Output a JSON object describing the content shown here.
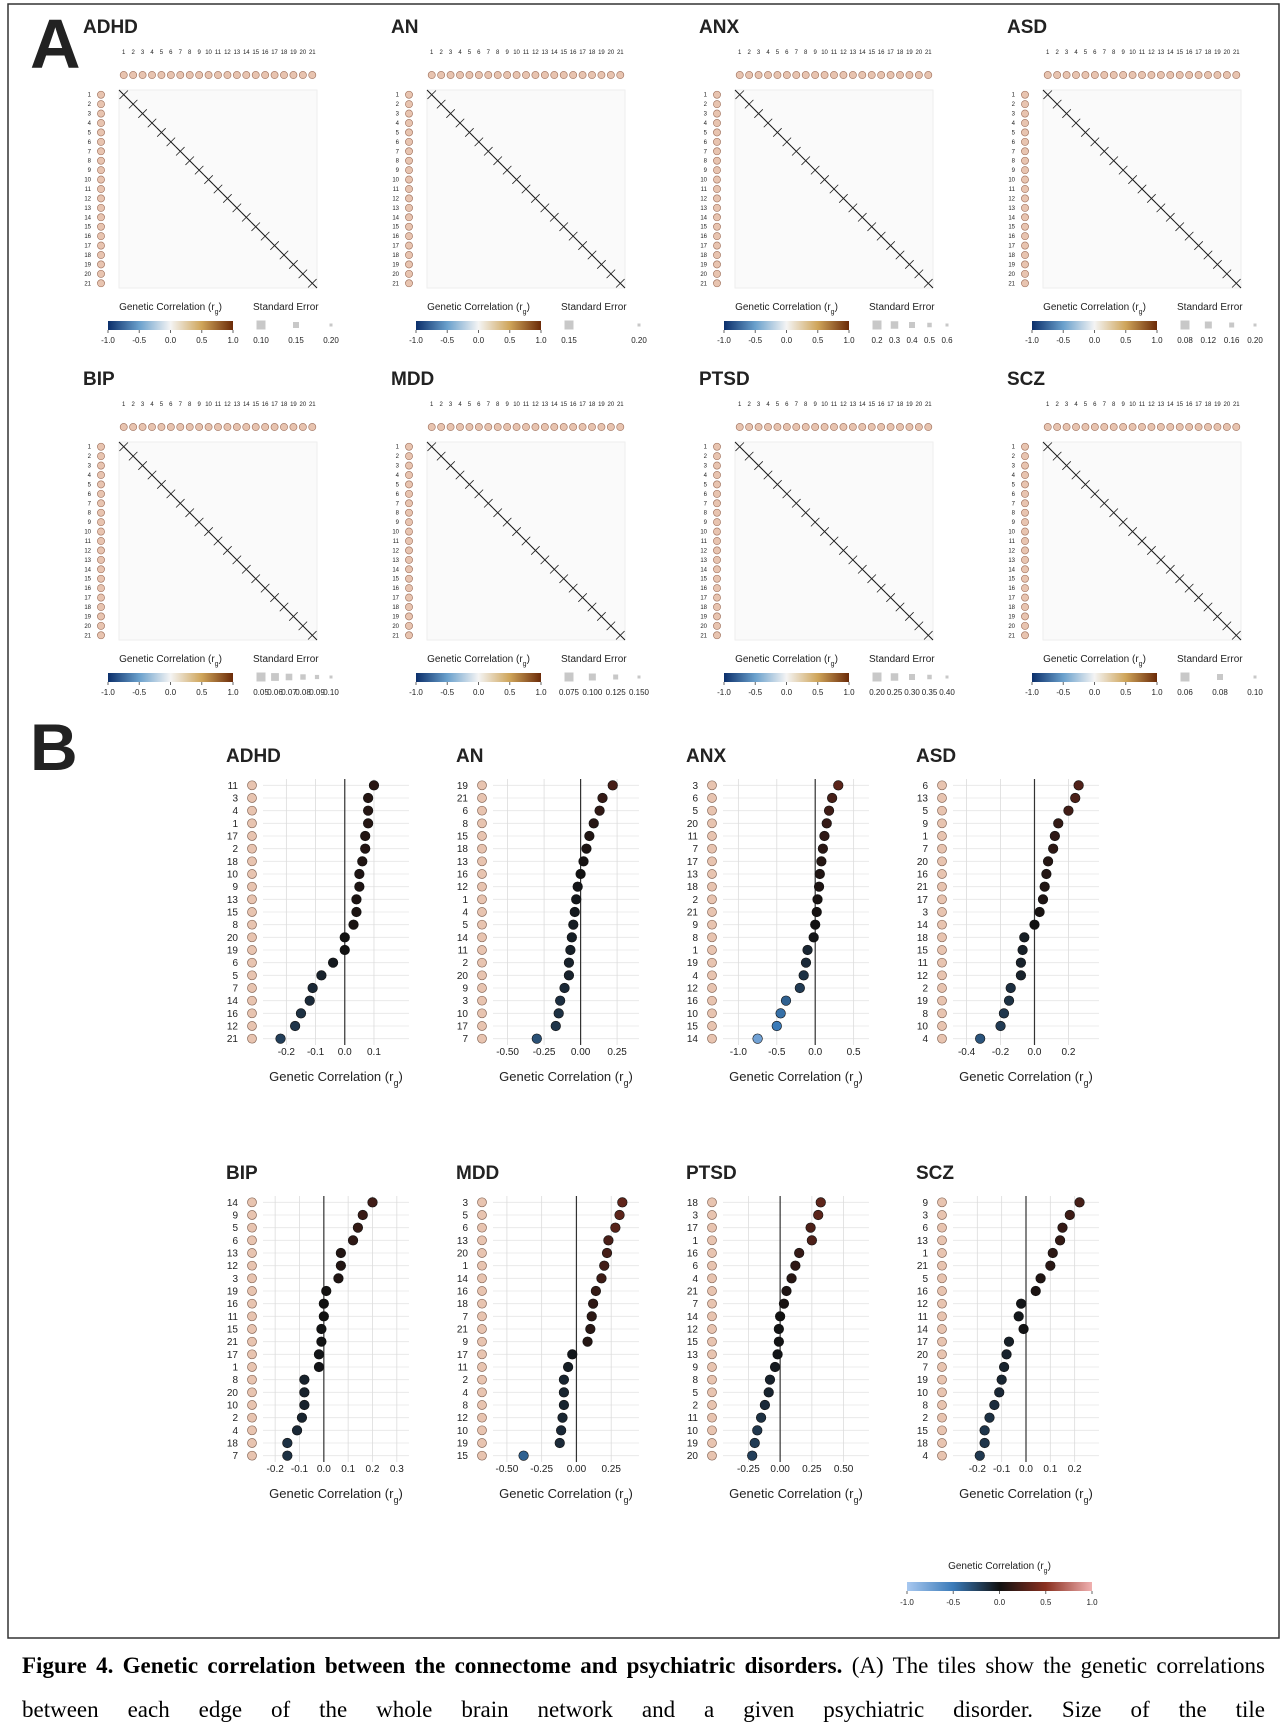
{
  "figure": {
    "panel_labels": [
      "A",
      "B"
    ],
    "regions": [
      "1",
      "2",
      "3",
      "4",
      "5",
      "6",
      "7",
      "8",
      "9",
      "10",
      "11",
      "12",
      "13",
      "14",
      "15",
      "16",
      "17",
      "18",
      "19",
      "20",
      "21"
    ],
    "r_label": [
      "Genetic Correlation (r",
      "g",
      ")"
    ],
    "se_label": "Standard Error",
    "colorbar_ticks": [
      {
        "value": -1,
        "label": "-1.0"
      },
      -0.5,
      {
        "value": 0,
        "label": "0.0"
      },
      0.5,
      {
        "value": 1,
        "label": "1.0"
      }
    ]
  },
  "chart_data": [
    {
      "type": "heatmap",
      "title": "ADHD",
      "se_ticks": [
        {
          "value": 0.1,
          "label": "0.10"
        },
        0.15,
        {
          "value": 0.2,
          "label": "0.20"
        }
      ]
    },
    {
      "type": "heatmap",
      "title": "AN",
      "se_ticks": [
        0.15,
        {
          "value": 0.2,
          "label": "0.20"
        }
      ]
    },
    {
      "type": "heatmap",
      "title": "ANX",
      "se_ticks": [
        0.2,
        0.3,
        0.4,
        0.5,
        0.6
      ]
    },
    {
      "type": "heatmap",
      "title": "ASD",
      "se_ticks": [
        0.08,
        0.12,
        0.16,
        {
          "value": 0.2,
          "label": "0.20"
        }
      ]
    },
    {
      "type": "heatmap",
      "title": "BIP",
      "se_ticks": [
        0.05,
        0.06,
        0.07,
        0.08,
        0.09,
        {
          "value": 0.1,
          "label": "0.10"
        }
      ]
    },
    {
      "type": "heatmap",
      "title": "MDD",
      "se_ticks": [
        0.075,
        {
          "value": 0.1,
          "label": "0.100"
        },
        0.125,
        {
          "value": 0.15,
          "label": "0.150"
        }
      ]
    },
    {
      "type": "heatmap",
      "title": "PTSD",
      "se_ticks": [
        {
          "value": 0.2,
          "label": "0.20"
        },
        0.25,
        {
          "value": 0.3,
          "label": "0.30"
        },
        0.35,
        {
          "value": 0.4,
          "label": "0.40"
        }
      ]
    },
    {
      "type": "heatmap",
      "title": "SCZ",
      "se_ticks": [
        0.06,
        0.08,
        {
          "value": 0.1,
          "label": "0.10"
        }
      ]
    },
    {
      "type": "dot",
      "title": "ADHD",
      "categories": [
        "11",
        "3",
        "4",
        "1",
        "17",
        "2",
        "18",
        "10",
        "9",
        "13",
        "15",
        "8",
        "20",
        "19",
        "6",
        "5",
        "7",
        "14",
        "16",
        "12",
        "21"
      ],
      "values": [
        0.1,
        0.08,
        0.08,
        0.08,
        0.07,
        0.07,
        0.06,
        0.05,
        0.05,
        0.04,
        0.04,
        0.03,
        0.0,
        0.0,
        -0.04,
        -0.08,
        -0.11,
        -0.12,
        -0.15,
        -0.17,
        -0.22
      ],
      "xlim": [
        -0.28,
        0.22
      ],
      "xticks": [
        -0.2,
        -0.1,
        {
          "value": 0,
          "label": "0.0"
        },
        0.1
      ]
    },
    {
      "type": "dot",
      "title": "AN",
      "categories": [
        "19",
        "21",
        "6",
        "8",
        "15",
        "18",
        "13",
        "16",
        "12",
        "1",
        "4",
        "5",
        "14",
        "11",
        "2",
        "20",
        "9",
        "3",
        "10",
        "17",
        "7"
      ],
      "values": [
        0.22,
        0.15,
        0.13,
        0.09,
        0.06,
        0.04,
        0.02,
        0.0,
        -0.02,
        -0.03,
        -0.04,
        -0.05,
        -0.06,
        -0.07,
        -0.08,
        -0.08,
        -0.11,
        -0.14,
        -0.15,
        -0.17,
        -0.3
      ],
      "xlim": [
        -0.6,
        0.4
      ],
      "xticks": [
        {
          "value": -0.5,
          "label": "-0.50"
        },
        -0.25,
        {
          "value": 0,
          "label": "0.00"
        },
        0.25
      ]
    },
    {
      "type": "dot",
      "title": "ANX",
      "categories": [
        "3",
        "6",
        "5",
        "20",
        "11",
        "7",
        "17",
        "13",
        "18",
        "2",
        "21",
        "9",
        "8",
        "1",
        "19",
        "4",
        "12",
        "16",
        "10",
        "15",
        "14"
      ],
      "values": [
        0.3,
        0.22,
        0.18,
        0.15,
        0.12,
        0.1,
        0.08,
        0.06,
        0.05,
        0.03,
        0.02,
        0.0,
        -0.02,
        -0.1,
        -0.12,
        -0.15,
        -0.2,
        -0.38,
        -0.45,
        -0.5,
        -0.75
      ],
      "xlim": [
        -1.2,
        0.7
      ],
      "xticks": [
        {
          "value": -1,
          "label": "-1.0"
        },
        -0.5,
        {
          "value": 0,
          "label": "0.0"
        },
        0.5
      ]
    },
    {
      "type": "dot",
      "title": "ASD",
      "categories": [
        "6",
        "13",
        "5",
        "9",
        "1",
        "7",
        "20",
        "16",
        "21",
        "17",
        "3",
        "14",
        "18",
        "15",
        "11",
        "12",
        "2",
        "19",
        "8",
        "10",
        "4"
      ],
      "values": [
        0.26,
        0.24,
        0.2,
        0.14,
        0.12,
        0.11,
        0.08,
        0.07,
        0.06,
        0.05,
        0.03,
        0.0,
        -0.06,
        -0.07,
        -0.08,
        -0.08,
        -0.14,
        -0.15,
        -0.18,
        -0.2,
        -0.32
      ],
      "xlim": [
        -0.48,
        0.38
      ],
      "xticks": [
        -0.4,
        -0.2,
        {
          "value": 0,
          "label": "0.0"
        },
        0.2
      ]
    },
    {
      "type": "dot",
      "title": "BIP",
      "categories": [
        "14",
        "9",
        "5",
        "6",
        "13",
        "12",
        "3",
        "19",
        "16",
        "11",
        "15",
        "21",
        "17",
        "1",
        "8",
        "20",
        "10",
        "2",
        "4",
        "18",
        "7"
      ],
      "values": [
        0.2,
        0.16,
        0.14,
        0.12,
        0.07,
        0.07,
        0.06,
        0.01,
        0.0,
        0.0,
        -0.01,
        -0.01,
        -0.02,
        -0.02,
        -0.08,
        -0.08,
        -0.08,
        -0.09,
        -0.11,
        -0.15,
        -0.15
      ],
      "xlim": [
        -0.25,
        0.35
      ],
      "xticks": [
        -0.2,
        -0.1,
        {
          "value": 0,
          "label": "0.0"
        },
        0.1,
        0.2,
        0.3
      ]
    },
    {
      "type": "dot",
      "title": "MDD",
      "categories": [
        "3",
        "5",
        "6",
        "13",
        "20",
        "1",
        "14",
        "16",
        "18",
        "7",
        "21",
        "9",
        "17",
        "11",
        "2",
        "4",
        "8",
        "12",
        "10",
        "19",
        "15"
      ],
      "values": [
        0.33,
        0.31,
        0.28,
        0.23,
        0.22,
        0.2,
        0.18,
        0.14,
        0.12,
        0.11,
        0.1,
        0.08,
        -0.03,
        -0.06,
        -0.09,
        -0.09,
        -0.09,
        -0.1,
        -0.11,
        -0.12,
        -0.38
      ],
      "xlim": [
        -0.6,
        0.45
      ],
      "xticks": [
        {
          "value": -0.5,
          "label": "-0.50"
        },
        -0.25,
        {
          "value": 0,
          "label": "0.00"
        },
        0.25
      ]
    },
    {
      "type": "dot",
      "title": "PTSD",
      "categories": [
        "18",
        "3",
        "17",
        "1",
        "16",
        "6",
        "4",
        "21",
        "7",
        "14",
        "12",
        "15",
        "13",
        "9",
        "8",
        "5",
        "2",
        "11",
        "10",
        "19",
        "20"
      ],
      "values": [
        0.32,
        0.3,
        0.24,
        0.25,
        0.15,
        0.12,
        0.09,
        0.05,
        0.03,
        0.0,
        -0.01,
        -0.01,
        -0.02,
        -0.04,
        -0.08,
        -0.09,
        -0.12,
        -0.15,
        -0.18,
        -0.2,
        -0.22
      ],
      "xlim": [
        -0.45,
        0.7
      ],
      "xticks": [
        -0.25,
        {
          "value": 0,
          "label": "0.00"
        },
        0.25,
        {
          "value": 0.5,
          "label": "0.50"
        }
      ]
    },
    {
      "type": "dot",
      "title": "SCZ",
      "categories": [
        "9",
        "3",
        "6",
        "13",
        "1",
        "21",
        "5",
        "16",
        "12",
        "11",
        "14",
        "17",
        "20",
        "7",
        "19",
        "10",
        "8",
        "2",
        "15",
        "18",
        "4"
      ],
      "values": [
        0.22,
        0.18,
        0.15,
        0.14,
        0.11,
        0.1,
        0.06,
        0.04,
        -0.02,
        -0.03,
        -0.01,
        -0.07,
        -0.08,
        -0.09,
        -0.1,
        -0.11,
        -0.13,
        -0.15,
        -0.17,
        -0.17,
        -0.19
      ],
      "xlim": [
        -0.3,
        0.3
      ],
      "xticks": [
        -0.2,
        -0.1,
        {
          "value": 0,
          "label": "0.0"
        },
        0.1,
        0.2
      ]
    }
  ],
  "caption": {
    "bold": "Figure 4. Genetic correlation between the connectome and psychiatric disorders.",
    "text": "(A) The tiles show the genetic correlations between each edge of the whole brain network and a given psychiatric disorder. Size of the tile"
  }
}
